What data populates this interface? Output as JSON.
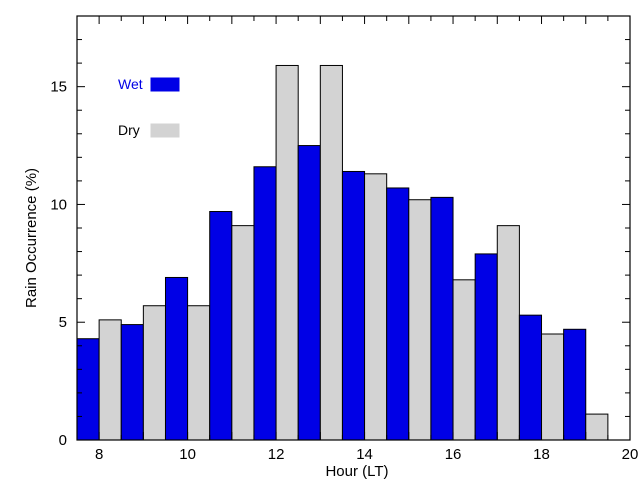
{
  "chart_data": {
    "type": "bar",
    "xlabel": "Hour (LT)",
    "ylabel": "Rain Occurrence (%)",
    "xlim": [
      7.5,
      20
    ],
    "ylim": [
      0,
      18
    ],
    "x_ticks": [
      8,
      10,
      12,
      14,
      16,
      18,
      20
    ],
    "y_ticks": [
      0,
      5,
      10,
      15
    ],
    "x": [
      8,
      9,
      10,
      11,
      12,
      13,
      14,
      15,
      16,
      17,
      18,
      19
    ],
    "legend_position": "top-left",
    "grid": false,
    "series": [
      {
        "name": "Wet",
        "color": "#0000e6",
        "values": [
          4.3,
          4.9,
          6.9,
          9.7,
          11.6,
          12.5,
          11.4,
          10.7,
          10.3,
          7.9,
          5.3,
          4.7
        ]
      },
      {
        "name": "Dry",
        "color": "#d3d3d3",
        "values": [
          5.1,
          5.7,
          5.7,
          9.1,
          15.9,
          15.9,
          11.3,
          10.2,
          6.8,
          9.1,
          4.5,
          1.1
        ]
      }
    ]
  }
}
